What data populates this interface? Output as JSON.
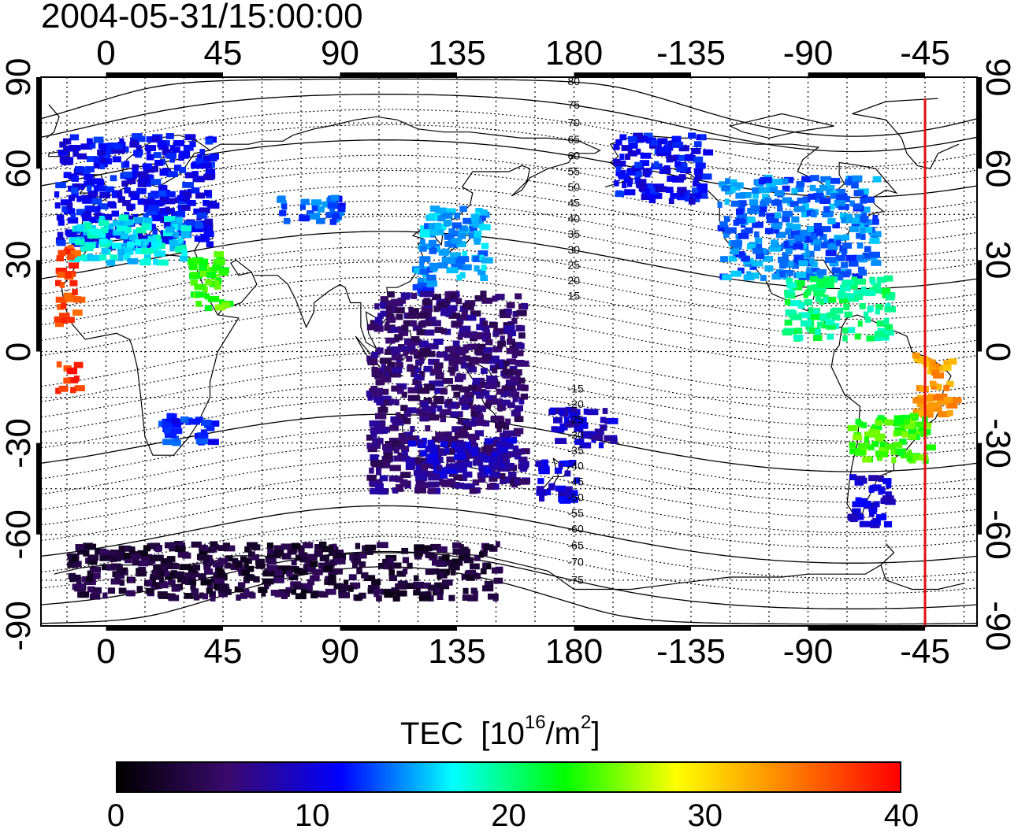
{
  "map": {
    "title": "2004-05-31/15:00:00",
    "x_ticks": [
      "0",
      "45",
      "90",
      "135",
      "180",
      "-135",
      "-90",
      "-45"
    ],
    "y_ticks": [
      "90",
      "60",
      "30",
      "0",
      "-30",
      "-60",
      "-90"
    ],
    "projection": "equirectangular",
    "lon_range": [
      -25,
      335
    ],
    "lat_range": [
      -90,
      90
    ],
    "grid": true,
    "grid_step_deg": 15,
    "coastlines": true,
    "red_meridian_lon": -45,
    "red_meridian_color": "#e01010",
    "magnetic_lat_labels": [
      "80",
      "75",
      "70",
      "65",
      "60",
      "55",
      "50",
      "45",
      "40",
      "35",
      "30",
      "25",
      "20",
      "15",
      "-15",
      "-20",
      "-25",
      "-30",
      "-35",
      "-40",
      "-45",
      "-50",
      "-55",
      "-60",
      "-65",
      "-70",
      "-75"
    ]
  },
  "colorbar": {
    "label": "TEC",
    "unit_prefix": "[10",
    "unit_exp": "16",
    "unit_mid": "/m",
    "unit_exp2": "2",
    "unit_suffix": "]",
    "ticks": [
      "0",
      "10",
      "20",
      "30",
      "40"
    ],
    "min": 0,
    "max": 40,
    "colormap": [
      "#000000",
      "#3a0a6e",
      "#0000ff",
      "#00ffff",
      "#00ff00",
      "#ffff00",
      "#ff8000",
      "#ff0000"
    ]
  },
  "chart_data": {
    "type": "heatmap",
    "title": "2004-05-31/15:00:00",
    "quantity": "TEC",
    "unit": "10^16/m^2",
    "value_range": [
      0,
      40
    ],
    "regions": [
      {
        "lon_range": [
          -20,
          40
        ],
        "lat_range": [
          35,
          72
        ],
        "tec": 11
      },
      {
        "lon_range": [
          -15,
          30
        ],
        "lat_range": [
          30,
          45
        ],
        "tec": 17
      },
      {
        "lon_range": [
          30,
          45
        ],
        "lat_range": [
          15,
          33
        ],
        "tec": 24
      },
      {
        "lon_range": [
          -20,
          -12
        ],
        "lat_range": [
          10,
          35
        ],
        "tec": 37
      },
      {
        "lon_range": [
          -20,
          -12
        ],
        "lat_range": [
          -12,
          -3
        ],
        "tec": 38
      },
      {
        "lon_range": [
          20,
          40
        ],
        "lat_range": [
          -30,
          -20
        ],
        "tec": 12
      },
      {
        "lon_range": [
          65,
          90
        ],
        "lat_range": [
          43,
          52
        ],
        "tec": 13
      },
      {
        "lon_range": [
          120,
          145
        ],
        "lat_range": [
          25,
          48
        ],
        "tec": 15
      },
      {
        "lon_range": [
          115,
          125
        ],
        "lat_range": [
          20,
          30
        ],
        "tec": 14
      },
      {
        "lon_range": [
          100,
          160
        ],
        "lat_range": [
          -45,
          20
        ],
        "tec": 6
      },
      {
        "lon_range": [
          115,
          155
        ],
        "lat_range": [
          -40,
          -28
        ],
        "tec": 9
      },
      {
        "lon_range": [
          165,
          180
        ],
        "lat_range": [
          -48,
          -35
        ],
        "tec": 10
      },
      {
        "lon_range": [
          170,
          195
        ],
        "lat_range": [
          -30,
          -18
        ],
        "tec": 9
      },
      {
        "lon_range": [
          -165,
          -130
        ],
        "lat_range": [
          50,
          72
        ],
        "tec": 11
      },
      {
        "lon_range": [
          -125,
          -65
        ],
        "lat_range": [
          25,
          58
        ],
        "tec": 14
      },
      {
        "lon_range": [
          -100,
          -60
        ],
        "lat_range": [
          5,
          25
        ],
        "tec": 20
      },
      {
        "lon_range": [
          -50,
          -35
        ],
        "lat_range": [
          -20,
          0
        ],
        "tec": 33
      },
      {
        "lon_range": [
          -75,
          -45
        ],
        "lat_range": [
          -35,
          -20
        ],
        "tec": 24
      },
      {
        "lon_range": [
          -75,
          -60
        ],
        "lat_range": [
          -56,
          -40
        ],
        "tec": 10
      },
      {
        "lon_range": [
          -15,
          150
        ],
        "lat_range": [
          -80,
          -62
        ],
        "tec": 3
      }
    ]
  }
}
